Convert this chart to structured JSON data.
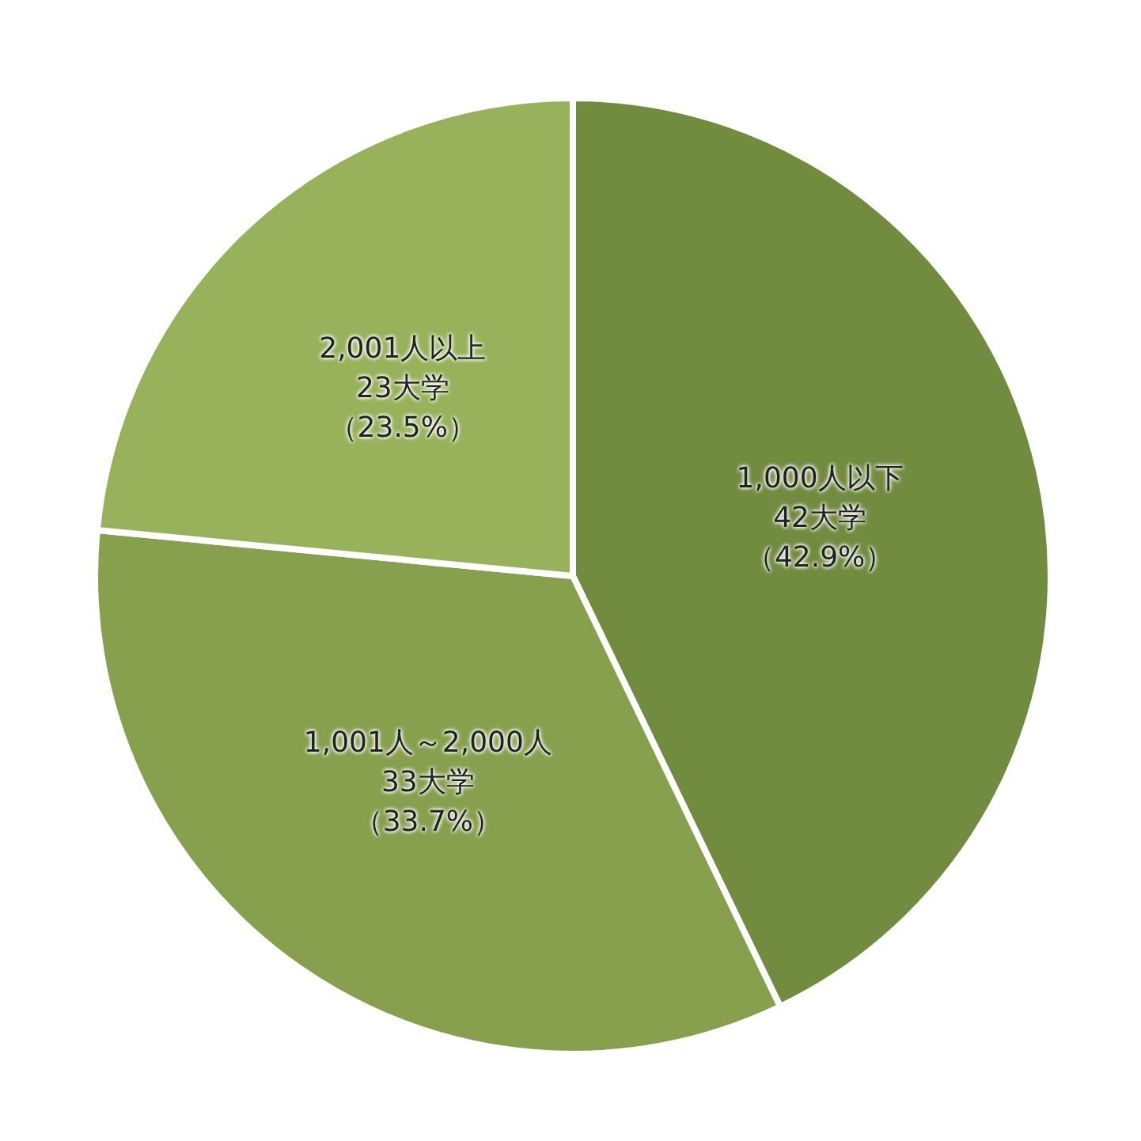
{
  "chart_data": {
    "type": "pie",
    "categories": [
      "1,000人以下",
      "1,001人～2,000人",
      "2,001人以上"
    ],
    "values": [
      42,
      33,
      23
    ],
    "value_labels": [
      "42大学（42.9%）",
      "33大学（33.7%）",
      "23大学（23.5%）"
    ],
    "colors": [
      "#718b3f",
      "#86a04d",
      "#97b25a"
    ]
  }
}
